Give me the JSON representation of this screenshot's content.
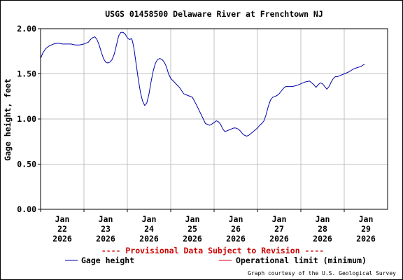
{
  "chart_data": {
    "type": "line",
    "title": "USGS 01458500 Delaware River at Frenchtown NJ",
    "ylabel": "Gage height, feet",
    "xlabel": "",
    "ylim": [
      0,
      2.0
    ],
    "yticks": [
      "0.00",
      "0.50",
      "1.00",
      "1.50",
      "2.00"
    ],
    "xticks": [
      {
        "day": "Jan",
        "num": "22",
        "year": "2026"
      },
      {
        "day": "Jan",
        "num": "23",
        "year": "2026"
      },
      {
        "day": "Jan",
        "num": "24",
        "year": "2026"
      },
      {
        "day": "Jan",
        "num": "25",
        "year": "2026"
      },
      {
        "day": "Jan",
        "num": "26",
        "year": "2026"
      },
      {
        "day": "Jan",
        "num": "27",
        "year": "2026"
      },
      {
        "day": "Jan",
        "num": "28",
        "year": "2026"
      },
      {
        "day": "Jan",
        "num": "29",
        "year": "2026"
      }
    ],
    "grid": true,
    "series": [
      {
        "name": "Gage height",
        "color": "#0000aa",
        "x": [
          21.5,
          21.55,
          21.62,
          21.7,
          21.8,
          21.9,
          22.0,
          22.1,
          22.2,
          22.3,
          22.4,
          22.5,
          22.6,
          22.65,
          22.7,
          22.75,
          22.8,
          22.85,
          22.9,
          22.95,
          23.0,
          23.05,
          23.1,
          23.15,
          23.2,
          23.25,
          23.3,
          23.35,
          23.4,
          23.45,
          23.5,
          23.55,
          23.6,
          23.62,
          23.65,
          23.7,
          23.75,
          23.8,
          23.85,
          23.9,
          23.95,
          24.0,
          24.05,
          24.1,
          24.15,
          24.2,
          24.25,
          24.3,
          24.35,
          24.4,
          24.45,
          24.5,
          24.6,
          24.7,
          24.8,
          24.9,
          25.0,
          25.1,
          25.2,
          25.3,
          25.4,
          25.5,
          25.55,
          25.6,
          25.65,
          25.7,
          25.75,
          25.8,
          25.85,
          25.9,
          25.95,
          26.0,
          26.05,
          26.1,
          26.15,
          26.2,
          26.25,
          26.3,
          26.4,
          26.5,
          26.55,
          26.6,
          26.65,
          26.7,
          26.75,
          26.8,
          26.85,
          26.9,
          26.95,
          27.0,
          27.05,
          27.1,
          27.15,
          27.2,
          27.3,
          27.4,
          27.5,
          27.6,
          27.7,
          27.8,
          27.85,
          27.9,
          27.95,
          28.0,
          28.05,
          28.1,
          28.15,
          28.2,
          28.25,
          28.3,
          28.35,
          28.4,
          28.5,
          28.6,
          28.7,
          28.8,
          28.88,
          28.94,
          28.97
        ],
        "values": [
          1.67,
          1.73,
          1.78,
          1.81,
          1.83,
          1.84,
          1.83,
          1.83,
          1.83,
          1.82,
          1.82,
          1.83,
          1.85,
          1.88,
          1.9,
          1.91,
          1.88,
          1.82,
          1.74,
          1.67,
          1.63,
          1.62,
          1.63,
          1.66,
          1.72,
          1.82,
          1.92,
          1.96,
          1.96,
          1.94,
          1.9,
          1.88,
          1.89,
          1.86,
          1.79,
          1.62,
          1.45,
          1.3,
          1.2,
          1.15,
          1.18,
          1.28,
          1.42,
          1.54,
          1.62,
          1.66,
          1.67,
          1.66,
          1.63,
          1.58,
          1.5,
          1.45,
          1.4,
          1.35,
          1.28,
          1.26,
          1.24,
          1.15,
          1.05,
          0.95,
          0.93,
          0.96,
          0.98,
          0.97,
          0.94,
          0.89,
          0.86,
          0.87,
          0.88,
          0.89,
          0.9,
          0.9,
          0.89,
          0.87,
          0.84,
          0.82,
          0.81,
          0.82,
          0.86,
          0.9,
          0.93,
          0.95,
          0.98,
          1.05,
          1.14,
          1.21,
          1.24,
          1.25,
          1.26,
          1.28,
          1.31,
          1.34,
          1.36,
          1.36,
          1.36,
          1.37,
          1.39,
          1.41,
          1.42,
          1.38,
          1.35,
          1.38,
          1.4,
          1.39,
          1.36,
          1.33,
          1.36,
          1.41,
          1.45,
          1.47,
          1.47,
          1.48,
          1.5,
          1.52,
          1.55,
          1.57,
          1.58,
          1.6,
          1.6
        ]
      },
      {
        "name": "Operational limit (minimum)",
        "color": "#cc0000",
        "x": [
          21.5,
          29.5
        ],
        "values": [
          0.0,
          0.0
        ]
      }
    ]
  },
  "notice": "---- Provisional Data Subject to Revision ----",
  "legend": {
    "gage_label": "Gage height",
    "limit_label": "Operational limit (minimum)"
  },
  "credit": "Graph courtesy of the U.S. Geological Survey"
}
